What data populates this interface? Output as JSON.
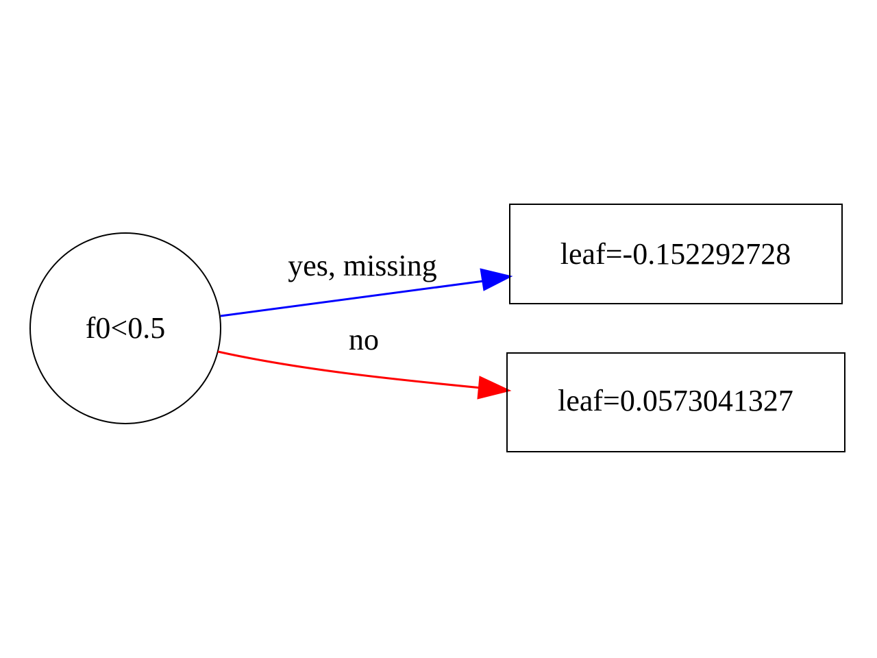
{
  "tree": {
    "split_node": {
      "label": "f0<0.5"
    },
    "leaves": [
      {
        "label": "leaf=-0.152292728"
      },
      {
        "label": "leaf=0.0573041327"
      }
    ],
    "edges": [
      {
        "label": "yes, missing",
        "color": "#0000ff"
      },
      {
        "label": "no",
        "color": "#ff0000"
      }
    ]
  }
}
